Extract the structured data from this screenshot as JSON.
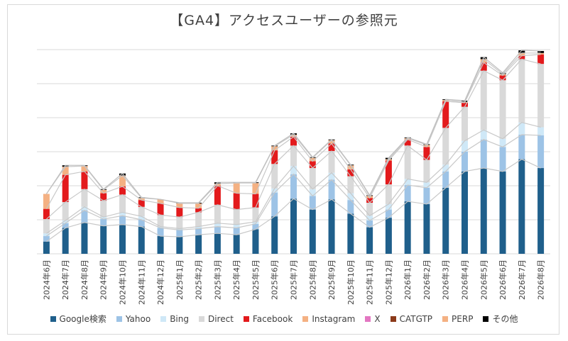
{
  "chart_data": {
    "type": "bar",
    "title": "【GA4】アクセスユーザーの参照元",
    "xlabel": "",
    "ylabel": "",
    "ylim": [
      0,
      300
    ],
    "grid": true,
    "legend_placement": "bottom",
    "categories": [
      "2024年6月",
      "2024年7月",
      "2024年8月",
      "2024年9月",
      "2024年10月",
      "2024年11月",
      "2024年12月",
      "2025年1月",
      "2025年2月",
      "2025年3月",
      "2025年4月",
      "2025年5月",
      "2025年6月",
      "2025年7月",
      "2025年8月",
      "2025年9月",
      "2025年10月",
      "2025年11月",
      "2025年12月",
      "2026年1月",
      "2026年2月",
      "2026年3月",
      "2026年4月",
      "2026年5月",
      "2026年6月",
      "2026年7月",
      "2026年8月"
    ],
    "series": [
      {
        "name": "Google検索",
        "color": "#1f5f8b",
        "values": [
          18,
          38,
          46,
          41,
          43,
          40,
          26,
          25,
          28,
          30,
          28,
          36,
          55,
          81,
          65,
          80,
          59,
          39,
          53,
          77,
          73,
          97,
          121,
          126,
          121,
          139,
          126
        ]
      },
      {
        "name": "Yahoo",
        "color": "#9dc3e6",
        "values": [
          8,
          7,
          18,
          10,
          13,
          10,
          12,
          10,
          9,
          10,
          10,
          8,
          35,
          36,
          20,
          29,
          20,
          10,
          12,
          24,
          24,
          24,
          29,
          42,
          36,
          36,
          48
        ]
      },
      {
        "name": "Bing",
        "color": "#cfe8f7",
        "values": [
          4,
          4,
          5,
          3,
          5,
          5,
          2,
          2,
          3,
          5,
          5,
          3,
          6,
          12,
          10,
          10,
          10,
          7,
          8,
          9,
          8,
          10,
          16,
          14,
          12,
          18,
          12
        ]
      },
      {
        "name": "Direct",
        "color": "#d9d9d9",
        "values": [
          21,
          27,
          26,
          24,
          26,
          14,
          17,
          17,
          21,
          27,
          22,
          21,
          36,
          30,
          31,
          32,
          25,
          19,
          29,
          49,
          33,
          54,
          50,
          87,
          86,
          93,
          93
        ]
      },
      {
        "name": "Facebook",
        "color": "#e31a1c",
        "values": [
          15,
          40,
          26,
          11,
          12,
          10,
          17,
          14,
          6,
          28,
          24,
          20,
          20,
          13,
          10,
          11,
          10,
          7,
          35,
          9,
          19,
          39,
          6,
          12,
          7,
          5,
          14
        ]
      },
      {
        "name": "Instagram",
        "color": "#f4b183",
        "values": [
          22,
          12,
          8,
          5,
          16,
          3,
          6,
          6,
          7,
          3,
          15,
          16,
          6,
          3,
          5,
          5,
          6,
          3,
          2,
          2,
          3,
          2,
          1,
          5,
          2,
          4,
          2
        ]
      },
      {
        "name": "X",
        "color": "#e377c2",
        "values": [
          0,
          0,
          0,
          0,
          0,
          0,
          0,
          0,
          0,
          0,
          0,
          0,
          0,
          0,
          0,
          0,
          0,
          0,
          0,
          0,
          0,
          0,
          0,
          0,
          0,
          0,
          0
        ]
      },
      {
        "name": "CATGTP",
        "color": "#8b3a1a",
        "values": [
          0,
          0,
          0,
          0,
          0,
          0,
          0,
          0,
          0,
          0,
          0,
          0,
          0,
          0,
          0,
          0,
          0,
          0,
          0,
          0,
          0,
          0,
          0,
          0,
          0,
          0,
          0
        ]
      },
      {
        "name": "PERP",
        "color": "#f4b183",
        "values": [
          0,
          0,
          0,
          0,
          0,
          0,
          0,
          0,
          0,
          0,
          0,
          0,
          0,
          0,
          0,
          0,
          0,
          0,
          0,
          0,
          0,
          0,
          0,
          0,
          0,
          0,
          0
        ]
      },
      {
        "name": "その他",
        "color": "#000000",
        "values": [
          0,
          2,
          1,
          1,
          3,
          1,
          0,
          1,
          1,
          2,
          1,
          1,
          1,
          2,
          1,
          1,
          1,
          1,
          2,
          1,
          1,
          1,
          2,
          3,
          2,
          4,
          3
        ]
      }
    ]
  }
}
